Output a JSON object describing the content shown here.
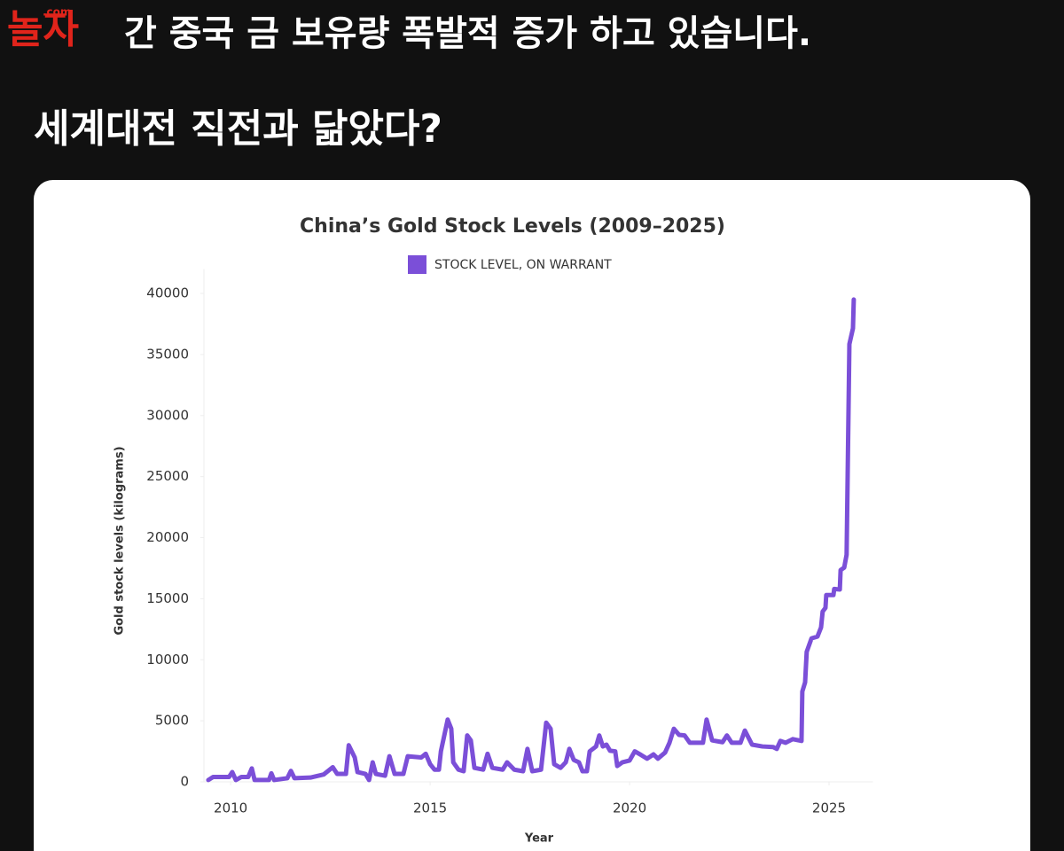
{
  "logo": {
    "name": "놀자",
    "suffix": ".com"
  },
  "header": {
    "line1": "간 중국 금 보유량 폭발적 증가 하고 있습니다.",
    "line2": "세계대전 직전과 닮았다?"
  },
  "chart_data": {
    "type": "line",
    "title": "China’s Gold Stock Levels (2009–2025)",
    "x_label": "Year",
    "y_label": "Gold stock levels (kilograms)",
    "x": [
      2009.44,
      2009.56,
      2009.96,
      2010.04,
      2010.13,
      2010.27,
      2010.44,
      2010.53,
      2010.6,
      2010.96,
      2011.02,
      2011.09,
      2011.42,
      2011.51,
      2011.6,
      2012.0,
      2012.33,
      2012.56,
      2012.67,
      2012.89,
      2012.96,
      2013.11,
      2013.18,
      2013.38,
      2013.47,
      2013.56,
      2013.64,
      2013.87,
      2013.98,
      2014.11,
      2014.33,
      2014.44,
      2014.78,
      2014.89,
      2015.0,
      2015.11,
      2015.22,
      2015.27,
      2015.44,
      2015.53,
      2015.58,
      2015.71,
      2015.84,
      2015.93,
      2016.02,
      2016.11,
      2016.33,
      2016.44,
      2016.56,
      2016.82,
      2016.93,
      2017.11,
      2017.33,
      2017.44,
      2017.56,
      2017.78,
      2017.91,
      2018.02,
      2018.11,
      2018.27,
      2018.4,
      2018.49,
      2018.6,
      2018.73,
      2018.82,
      2018.93,
      2019.0,
      2019.16,
      2019.24,
      2019.33,
      2019.42,
      2019.51,
      2019.64,
      2019.69,
      2019.82,
      2020.0,
      2020.13,
      2020.29,
      2020.44,
      2020.6,
      2020.71,
      2020.89,
      2021.0,
      2021.11,
      2021.24,
      2021.38,
      2021.51,
      2021.84,
      2021.93,
      2022.07,
      2022.33,
      2022.44,
      2022.56,
      2022.78,
      2022.89,
      2023.07,
      2023.33,
      2023.6,
      2023.69,
      2023.78,
      2023.91,
      2024.09,
      2024.31,
      2024.33,
      2024.4,
      2024.44,
      2024.56,
      2024.71,
      2024.8,
      2024.84,
      2024.91,
      2024.93,
      2025.11,
      2025.13,
      2025.27,
      2025.29,
      2025.38,
      2025.44,
      2025.51,
      2025.6,
      2025.62
    ],
    "series": [
      {
        "name": "STOCK LEVEL, ON WARRANT",
        "color": "#7b4fd8",
        "values": [
          150,
          400,
          400,
          800,
          150,
          400,
          400,
          1100,
          150,
          150,
          700,
          150,
          300,
          900,
          300,
          350,
          600,
          1200,
          650,
          650,
          3000,
          2000,
          800,
          650,
          150,
          1600,
          650,
          500,
          2100,
          650,
          650,
          2100,
          2000,
          2300,
          1450,
          1000,
          1000,
          2500,
          5100,
          4350,
          1600,
          1000,
          870,
          3800,
          3400,
          1150,
          1000,
          2300,
          1150,
          1000,
          1600,
          1000,
          870,
          2700,
          870,
          1000,
          4850,
          4350,
          1450,
          1150,
          1600,
          2700,
          1800,
          1600,
          870,
          870,
          2500,
          2900,
          3800,
          2900,
          3050,
          2550,
          2500,
          1300,
          1600,
          1750,
          2500,
          2200,
          1900,
          2250,
          1900,
          2400,
          3200,
          4350,
          3850,
          3800,
          3200,
          3200,
          5100,
          3400,
          3250,
          3800,
          3200,
          3200,
          4200,
          3050,
          2900,
          2850,
          2700,
          3350,
          3200,
          3500,
          3350,
          7400,
          8150,
          10650,
          11750,
          11900,
          12650,
          13950,
          14250,
          15300,
          15300,
          15800,
          15750,
          17350,
          17550,
          18600,
          35850,
          37150,
          39500
        ]
      }
    ],
    "xlim": [
      2009.33,
      2026.1
    ],
    "xticks": [
      2010,
      2015,
      2020,
      2025
    ],
    "ylim": [
      0,
      42000
    ],
    "yticks": [
      0,
      5000,
      10000,
      15000,
      20000,
      25000,
      30000,
      35000,
      40000
    ],
    "grid": false
  }
}
